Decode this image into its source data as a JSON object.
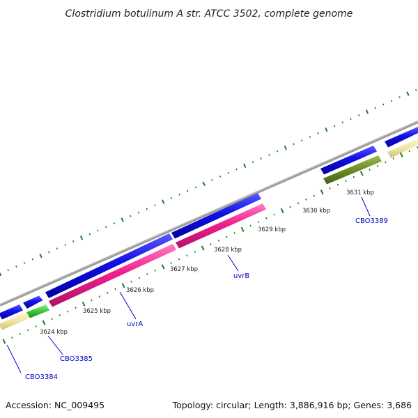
{
  "title": "Clostridium botulinum A str. ATCC 3502, complete genome",
  "footer": {
    "accession": "Accession: NC_009495",
    "summary": "Topology: circular; Length: 3,886,916 bp; Genes: 3,686"
  },
  "scale": {
    "tick_labels": [
      "3624 kbp",
      "3625 kbp",
      "3626 kbp",
      "3627 kbp",
      "3628 kbp",
      "3629 kbp",
      "3630 kbp",
      "3631 kbp"
    ]
  },
  "genes": [
    {
      "name": "CBO3384"
    },
    {
      "name": "CBO3385"
    },
    {
      "name": "uvrA"
    },
    {
      "name": "uvrB"
    },
    {
      "name": "CBO3389"
    }
  ],
  "colors": {
    "backbone": "#8a8a8a",
    "cds": "#1010e6",
    "track_magenta": "#f0208c",
    "track_green": "#3cc83c",
    "track_olive": "#6b8e23",
    "track_khaki": "#f0e6a0",
    "tick": "#1a7a1a",
    "label": "#0000cc"
  }
}
